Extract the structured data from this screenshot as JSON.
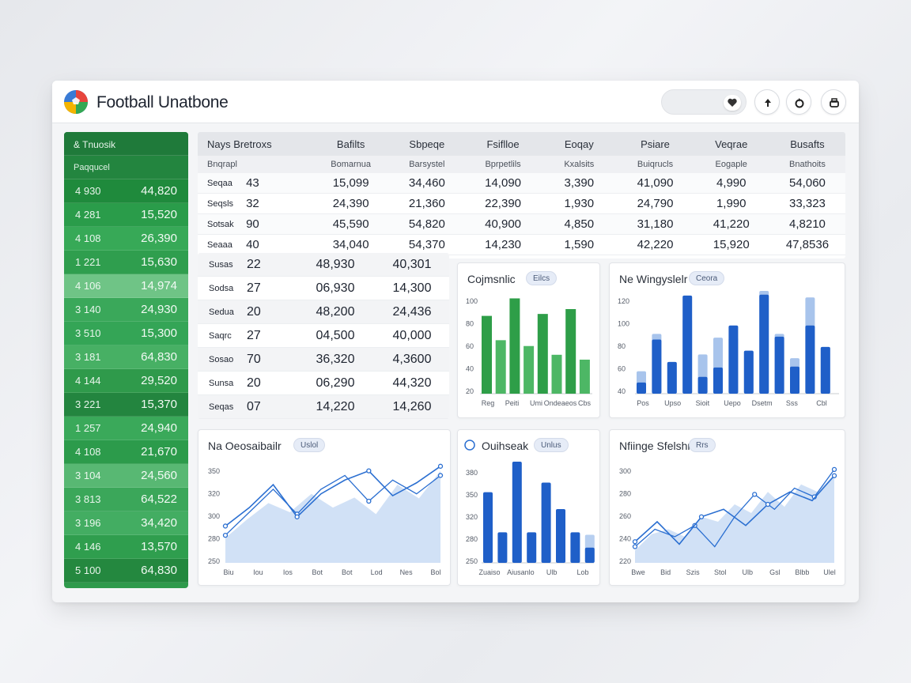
{
  "app": {
    "title": "Football Unatbone"
  },
  "sidebar": {
    "header": "& Tnuosik",
    "subheader": "Paqqucel",
    "rows": [
      [
        "4 930",
        "44,820"
      ],
      [
        "4 281",
        "15,520"
      ],
      [
        "4 108",
        "26,390"
      ],
      [
        "1 221",
        "15,630"
      ],
      [
        "4 106",
        "14,974"
      ],
      [
        "3 140",
        "24,930"
      ],
      [
        "3 510",
        "15,300"
      ],
      [
        "3 181",
        "64,830"
      ],
      [
        "4 144",
        "29,520"
      ],
      [
        "3 221",
        "15,370"
      ],
      [
        "1 257",
        "24,940"
      ],
      [
        "4 108",
        "21,670"
      ],
      [
        "3 104",
        "24,560"
      ],
      [
        "3 813",
        "64,522"
      ],
      [
        "3 196",
        "34,420"
      ],
      [
        "4 146",
        "13,570"
      ],
      [
        "5 100",
        "64,830"
      ]
    ]
  },
  "table": {
    "headers": [
      "Nays Bretroxs",
      "Bafilts",
      "Sbpeqe",
      "Fsiflloe",
      "Eoqay",
      "Psiare",
      "Veqrae",
      "Busafts"
    ],
    "subheaders": [
      "Bnqrapl",
      "Bomarnua",
      "Barsystel",
      "Bprpetlils",
      "Kxalsits",
      "Buiqrucls",
      "Eogaple",
      "Bnathoits"
    ],
    "rows": [
      [
        "Seqaa",
        "43",
        "15,099",
        "34,460",
        "14,090",
        "3,390",
        "41,090",
        "4,990",
        "54,060"
      ],
      [
        "Seqsls",
        "32",
        "24,390",
        "21,360",
        "22,390",
        "1,930",
        "24,790",
        "1,990",
        "33,323"
      ],
      [
        "Sotsak",
        "90",
        "45,590",
        "54,820",
        "40,900",
        "4,850",
        "31,180",
        "41,220",
        "4,8210"
      ],
      [
        "Seaaa",
        "40",
        "34,040",
        "54,370",
        "14,230",
        "1,590",
        "42,220",
        "15,920",
        "47,8536"
      ]
    ]
  },
  "lower_table": {
    "rows": [
      [
        "Susas",
        "22",
        "48,930",
        "40,301"
      ],
      [
        "Sodsa",
        "27",
        "06,930",
        "14,300"
      ],
      [
        "Sedua",
        "20",
        "48,200",
        "24,436"
      ],
      [
        "Saqrc",
        "27",
        "04,500",
        "40,000"
      ],
      [
        "Sosao",
        "70",
        "36,320",
        "4,3600"
      ],
      [
        "Sunsa",
        "20",
        "06,290",
        "44,320"
      ],
      [
        "Seqas",
        "07",
        "14,220",
        "14,260"
      ]
    ]
  },
  "charts": {
    "green_bar": {
      "title": "Cojmsnlic",
      "chip": "Eilcs",
      "colors": [
        "#2e9e48",
        "#4db765"
      ],
      "yticks": [
        "100",
        "80",
        "60",
        "40",
        "20"
      ],
      "xticks": [
        "Reg",
        "Peiti",
        "Umi",
        "Ondeaeos",
        "Cbs"
      ],
      "values": [
        80,
        55,
        98,
        49,
        82,
        40,
        87,
        35
      ]
    },
    "blue_bar_stacked": {
      "title": "Ne Wingyslelr",
      "chip": "Ceora",
      "colors": [
        "#1f5fc8",
        "#a8c4ec"
      ],
      "yticks": [
        "120",
        "100",
        "80",
        "60",
        "40"
      ],
      "xticks": [
        "Pos",
        "Upso",
        "Sioit",
        "Uepo",
        "Dsetm",
        "Sss",
        "Cbl"
      ],
      "solid": [
        12,
        58,
        34,
        105,
        18,
        28,
        73,
        46,
        106,
        61,
        29,
        73,
        50
      ],
      "light": [
        24,
        64,
        34,
        80,
        42,
        60,
        60,
        46,
        110,
        64,
        38,
        103,
        50
      ]
    },
    "area_left": {
      "title": "Na Oeosaibailr",
      "chip": "Uslol",
      "yticks": [
        "350",
        "320",
        "300",
        "280",
        "250"
      ],
      "xticks": [
        "Biu",
        "Iou",
        "Ios",
        "Bot",
        "Bot",
        "Lod",
        "Nes",
        "Bol"
      ],
      "area": [
        272,
        292,
        310,
        300,
        320,
        305,
        316,
        298,
        330,
        315,
        345
      ],
      "line1": [
        275,
        300,
        325,
        298,
        325,
        340,
        312,
        335,
        320,
        340
      ],
      "line2": [
        285,
        305,
        330,
        295,
        320,
        335,
        345,
        318,
        332,
        350
      ],
      "colors": [
        "#2b6fd1",
        "#cfdff5"
      ]
    },
    "blue_bar_right": {
      "title": "Ouihseak",
      "chip": "Unlus",
      "colors": [
        "#1f5fc8",
        "#b7cff0"
      ],
      "yticks": [
        "380",
        "350",
        "320",
        "280",
        "250"
      ],
      "xticks": [
        "Zuaiso",
        "Aiusanlo",
        "Ulb",
        "Lob"
      ],
      "values": [
        88,
        38,
        126,
        38,
        100,
        67,
        38,
        19
      ],
      "light_last": 35
    },
    "area_right": {
      "title": "Nfiinge Sfelshr",
      "chip": "Rrs",
      "yticks": [
        "300",
        "280",
        "260",
        "240",
        "220"
      ],
      "xticks": [
        "Bwe",
        "Bid",
        "Szis",
        "Stol",
        "Ulb",
        "Gsl",
        "Blbb",
        "Ulel"
      ],
      "area": [
        235,
        248,
        252,
        246,
        262,
        258,
        272,
        265,
        282,
        270,
        288,
        282,
        296
      ],
      "line1": [
        238,
        252,
        246,
        255,
        238,
        262,
        280,
        268,
        285,
        278,
        300
      ],
      "line2": [
        242,
        258,
        240,
        262,
        268,
        255,
        272,
        282,
        275,
        295
      ],
      "colors": [
        "#2b6fd1",
        "#cfdff5"
      ]
    }
  }
}
